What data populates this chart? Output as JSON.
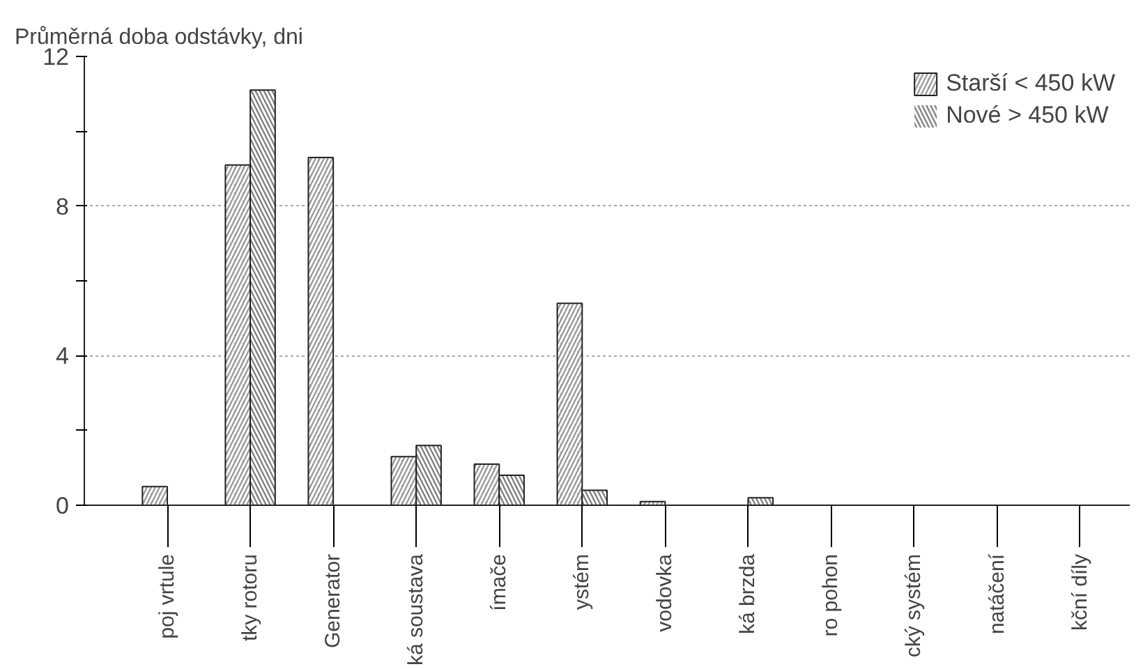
{
  "chart_data": {
    "type": "bar",
    "ylabel": "Průměrná doba odstávky, dni",
    "categories": [
      "poj vrtule",
      "tky rotoru",
      "Generator",
      "ká soustava",
      "ímače",
      "ystém",
      "vodovka",
      "ká brzda",
      "ro pohon",
      "cký systém",
      "natáčení",
      "kční díly"
    ],
    "series": [
      {
        "name": "Starší < 450 kW",
        "color": "#9a9a9a",
        "values": [
          0.5,
          9.1,
          9.3,
          1.3,
          1.1,
          5.4,
          0.1,
          0,
          0,
          0,
          0,
          0
        ]
      },
      {
        "name": "Nové > 450 kW",
        "color": "#808080",
        "values": [
          0,
          11.1,
          0,
          1.6,
          0.8,
          0.4,
          0,
          0.2,
          0,
          0,
          0,
          0
        ]
      }
    ],
    "ylim": [
      0,
      12
    ],
    "yticks": [
      0,
      {
        "value": 2,
        "label": null
      },
      4,
      {
        "value": 6,
        "label": null
      },
      8,
      {
        "value": 10,
        "label": null
      },
      12
    ],
    "grid": "y",
    "legend": "top right"
  }
}
